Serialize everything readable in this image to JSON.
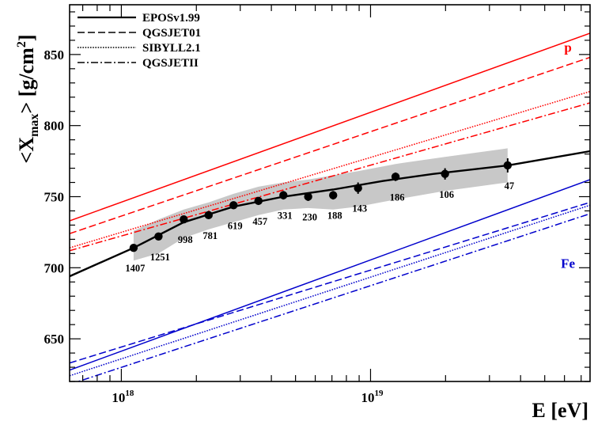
{
  "chart_data": {
    "type": "line",
    "xlabel": "E [eV]",
    "ylabel_main": "<X",
    "ylabel_sub": "max",
    "ylabel_tail": "> [g/cm",
    "ylabel_sup": "2",
    "ylabel_end": "]",
    "xscale": "log",
    "xlim": [
      6.2e+17,
      7.6e+19
    ],
    "ylim": [
      620,
      885
    ],
    "yticks": [
      650,
      700,
      750,
      800,
      850
    ],
    "ytick_labels": [
      "650",
      "700",
      "750",
      "800",
      "850"
    ],
    "xticks": [
      1e+18,
      1e+19
    ],
    "xtick_labels": [
      {
        "base": "10",
        "exp": "18"
      },
      {
        "base": "10",
        "exp": "19"
      }
    ],
    "legend": {
      "placement": "top-left",
      "entries": [
        {
          "label": "EPOSv1.99",
          "style": "solid"
        },
        {
          "label": "QGSJET01",
          "style": "dashed"
        },
        {
          "label": "SIBYLL2.1",
          "style": "dotted"
        },
        {
          "label": "QGSJETII",
          "style": "dashdot"
        }
      ]
    },
    "annotations": [
      {
        "text": "p",
        "color": "#ff0000",
        "x": 6.2e+19,
        "y": 852
      },
      {
        "text": "Fe",
        "color": "#0000cc",
        "x": 6.2e+19,
        "y": 700
      }
    ],
    "model_lines": [
      {
        "primary": "p",
        "model": "EPOSv1.99",
        "style": "solid",
        "color": "#ff0000",
        "x": [
          6.2e+17,
          7.6e+19
        ],
        "y": [
          733,
          865
        ]
      },
      {
        "primary": "p",
        "model": "QGSJET01",
        "style": "dashed",
        "color": "#ff0000",
        "x": [
          6.2e+17,
          7.6e+19
        ],
        "y": [
          724,
          848
        ]
      },
      {
        "primary": "p",
        "model": "SIBYLL2.1",
        "style": "dotted",
        "color": "#ff0000",
        "x": [
          6.2e+17,
          7.6e+19
        ],
        "y": [
          714,
          824
        ]
      },
      {
        "primary": "p",
        "model": "QGSJETII",
        "style": "dashdot",
        "color": "#ff0000",
        "x": [
          6.2e+17,
          7.6e+19
        ],
        "y": [
          712,
          816
        ]
      },
      {
        "primary": "Fe",
        "model": "EPOSv1.99",
        "style": "solid",
        "color": "#0000cc",
        "x": [
          6.2e+17,
          7.6e+19
        ],
        "y": [
          628,
          762
        ]
      },
      {
        "primary": "Fe",
        "model": "QGSJET01",
        "style": "dashed",
        "color": "#0000cc",
        "x": [
          6.2e+17,
          7.6e+19
        ],
        "y": [
          633,
          746
        ]
      },
      {
        "primary": "Fe",
        "model": "SIBYLL2.1",
        "style": "dotted",
        "color": "#0000cc",
        "x": [
          6.2e+17,
          7.6e+19
        ],
        "y": [
          624,
          744
        ]
      },
      {
        "primary": "Fe",
        "model": "QGSJETII",
        "style": "dashdot",
        "color": "#0000cc",
        "x": [
          6.2e+17,
          7.6e+19
        ],
        "y": [
          618,
          738
        ]
      }
    ],
    "fit_line": {
      "style": "solid",
      "color": "#000000",
      "x": [
        6.2e+17,
        1.12e+18,
        1.78e+18,
        2.82e+18,
        4.47e+18,
        7.08e+18,
        1.12e+19,
        1.78e+19,
        3.55e+19,
        7.6e+19
      ],
      "y": [
        694,
        714,
        732,
        743,
        750,
        755,
        761,
        766,
        772,
        782
      ]
    },
    "syst_band": {
      "color": "#c8c8c8",
      "x": [
        1.12e+18,
        1.41e+18,
        1.78e+18,
        2.24e+18,
        2.82e+18,
        3.55e+18,
        4.47e+18,
        5.62e+18,
        7.08e+18,
        8.91e+18,
        1.26e+19,
        1.99e+19,
        3.55e+19
      ],
      "upper": [
        726,
        734,
        741,
        746,
        752,
        757,
        760,
        762,
        765,
        768,
        773,
        778,
        784
      ],
      "lower": [
        705,
        710,
        721,
        727,
        732,
        737,
        741,
        742,
        741,
        743,
        748,
        754,
        760
      ]
    },
    "data_points": [
      {
        "x": 1.12e+18,
        "y": 714,
        "err": 2,
        "n": "1407"
      },
      {
        "x": 1.41e+18,
        "y": 722,
        "err": 2,
        "n": "1251"
      },
      {
        "x": 1.78e+18,
        "y": 734,
        "err": 2,
        "n": "998"
      },
      {
        "x": 2.24e+18,
        "y": 737,
        "err": 2,
        "n": "781"
      },
      {
        "x": 2.82e+18,
        "y": 744,
        "err": 2,
        "n": "619"
      },
      {
        "x": 3.55e+18,
        "y": 747,
        "err": 2,
        "n": "457"
      },
      {
        "x": 4.47e+18,
        "y": 751,
        "err": 3,
        "n": "331"
      },
      {
        "x": 5.62e+18,
        "y": 750,
        "err": 3,
        "n": "230"
      },
      {
        "x": 7.08e+18,
        "y": 751,
        "err": 3,
        "n": "188"
      },
      {
        "x": 8.91e+18,
        "y": 756,
        "err": 4,
        "n": "143"
      },
      {
        "x": 1.26e+19,
        "y": 764,
        "err": 3,
        "n": "186"
      },
      {
        "x": 1.99e+19,
        "y": 766,
        "err": 4,
        "n": "106"
      },
      {
        "x": 3.55e+19,
        "y": 772,
        "err": 5,
        "n": "47"
      }
    ]
  }
}
